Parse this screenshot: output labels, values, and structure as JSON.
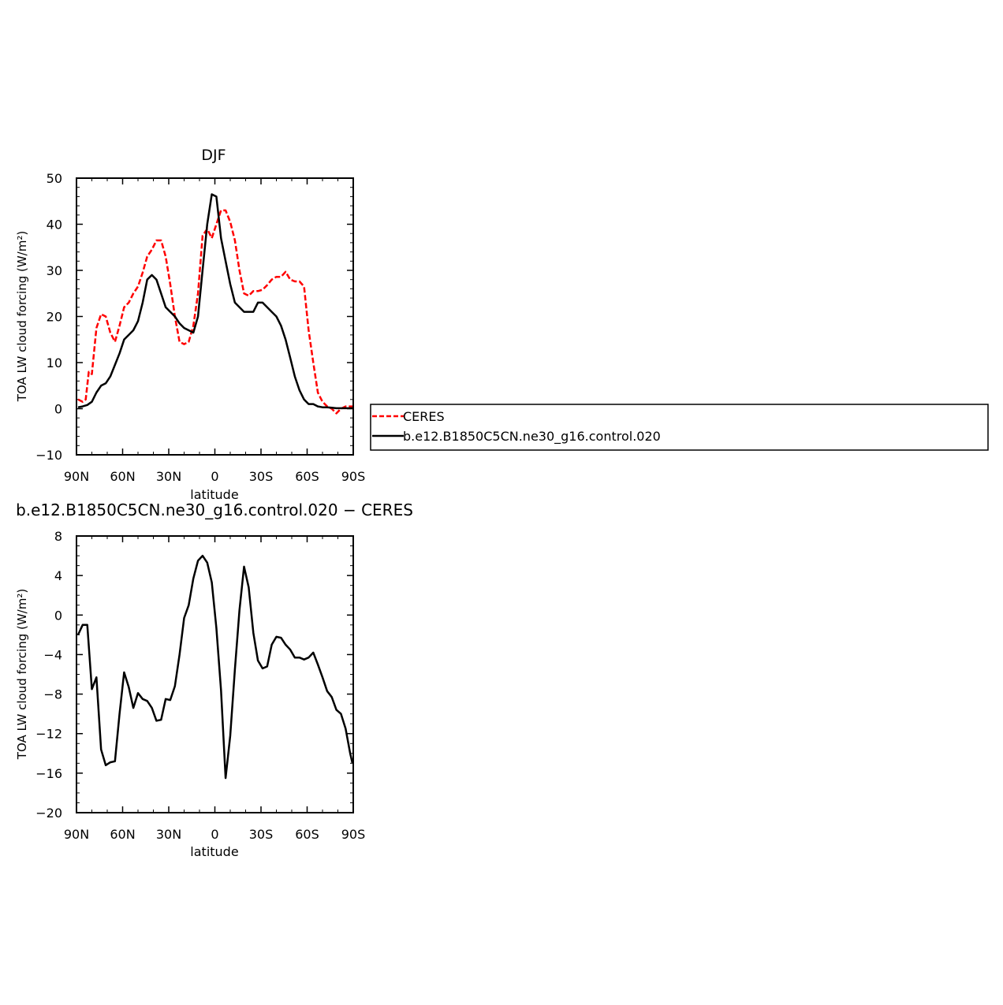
{
  "chart_data": [
    {
      "type": "line",
      "title": "DJF",
      "xlabel": "latitude",
      "ylabel": "TOA LW cloud forcing (W/m²)",
      "xticks": [
        "90N",
        "60N",
        "30N",
        "0",
        "30S",
        "60S",
        "90S"
      ],
      "xlim": [
        90,
        -90
      ],
      "yticks": [
        "−10",
        "0",
        "10",
        "20",
        "30",
        "40",
        "50"
      ],
      "ylim": [
        -10,
        50
      ],
      "legend_position": "right",
      "series": [
        {
          "name": "CERES",
          "color": "#ff0000",
          "dash": "dashed",
          "x": [
            89,
            86,
            84,
            82,
            80,
            77,
            74,
            71,
            68,
            65,
            62,
            59,
            56,
            53,
            50,
            47,
            44,
            41,
            38,
            35,
            32,
            29,
            26,
            23,
            20,
            17,
            14,
            11,
            8,
            5,
            2,
            -1,
            -4,
            -7,
            -10,
            -13,
            -16,
            -19,
            -22,
            -25,
            -28,
            -31,
            -34,
            -37,
            -40,
            -43,
            -46,
            -49,
            -52,
            -55,
            -58,
            -61,
            -64,
            -67,
            -70,
            -73,
            -76,
            -79,
            -82,
            -85,
            -88,
            -89.5
          ],
          "values": [
            2,
            1.5,
            2,
            8,
            7.5,
            17.5,
            20.5,
            20,
            16.5,
            14.5,
            18,
            22,
            23,
            25,
            26.5,
            29.5,
            33,
            34.5,
            36.5,
            36.5,
            33,
            27,
            20,
            14.5,
            14,
            14.5,
            18,
            25,
            37.5,
            39,
            37,
            40,
            43,
            43,
            40.5,
            36.5,
            30,
            25,
            24.5,
            25.5,
            25.5,
            25.8,
            26.8,
            28,
            28.6,
            28.6,
            29.7,
            28,
            27.6,
            27.6,
            26.5,
            17,
            10,
            3.5,
            1.5,
            0.5,
            0,
            -1,
            0,
            0.5,
            0.5,
            0.5
          ]
        },
        {
          "name": "b.e12.B1850C5CN.ne30_g16.control.020",
          "color": "#000000",
          "dash": "solid",
          "x": [
            89,
            86,
            83,
            80,
            77,
            74,
            71,
            68,
            65,
            62,
            59,
            56,
            53,
            50,
            47,
            44,
            41,
            38,
            35,
            32,
            29,
            26,
            23,
            20,
            17,
            14,
            11,
            8,
            5,
            2,
            -1,
            -4,
            -7,
            -10,
            -13,
            -16,
            -19,
            -22,
            -25,
            -28,
            -31,
            -34,
            -37,
            -40,
            -43,
            -46,
            -49,
            -52,
            -55,
            -58,
            -61,
            -64,
            -67,
            -70,
            -73,
            -76,
            -79,
            -82,
            -85,
            -88,
            -89.5
          ],
          "values": [
            0.3,
            0.5,
            0.8,
            1.5,
            3.5,
            5,
            5.5,
            7,
            9.5,
            12,
            15,
            16,
            17,
            19,
            23,
            28,
            29,
            28,
            25,
            22,
            21,
            20,
            18.5,
            17.5,
            17,
            16.5,
            20,
            30,
            40,
            46.5,
            46,
            37,
            32,
            27,
            23,
            22,
            21,
            21,
            21,
            23,
            23,
            22,
            21,
            20,
            18,
            15,
            11,
            7,
            4,
            2,
            1,
            1,
            0.5,
            0.3,
            0.3,
            0.2,
            0.1,
            0.1,
            0.1,
            0.1,
            0.1
          ]
        }
      ]
    },
    {
      "type": "line",
      "title": "b.e12.B1850C5CN.ne30_g16.control.020 − CERES",
      "xlabel": "latitude",
      "ylabel": "TOA LW cloud forcing (W/m²)",
      "xticks": [
        "90N",
        "60N",
        "30N",
        "0",
        "30S",
        "60S",
        "90S"
      ],
      "xlim": [
        90,
        -90
      ],
      "yticks": [
        "−20",
        "−16",
        "−12",
        "−8",
        "−4",
        "0",
        "4",
        "8"
      ],
      "ylim": [
        -20,
        8
      ],
      "series": [
        {
          "name": "",
          "color": "#000000",
          "dash": "solid",
          "x": [
            89,
            86,
            83,
            80,
            77,
            74,
            71,
            68,
            65,
            62,
            59,
            56,
            53,
            50,
            47,
            44,
            41,
            38,
            35,
            32,
            29,
            26,
            23,
            20,
            17,
            14,
            11,
            8,
            5,
            2,
            -1,
            -4,
            -7,
            -10,
            -13,
            -16,
            -19,
            -22,
            -25,
            -28,
            -31,
            -34,
            -37,
            -40,
            -43,
            -46,
            -49,
            -52,
            -55,
            -58,
            -61,
            -64,
            -67,
            -70,
            -73,
            -76,
            -79,
            -82,
            -85,
            -88,
            -89.5
          ],
          "values": [
            -2,
            -1,
            -1,
            -7.5,
            -6.3,
            -13.6,
            -15.2,
            -14.9,
            -14.8,
            -10,
            -5.8,
            -7.3,
            -9.4,
            -7.9,
            -8.5,
            -8.7,
            -9.4,
            -10.7,
            -10.6,
            -8.5,
            -8.6,
            -7.2,
            -4,
            -0.3,
            1,
            3.7,
            5.5,
            6,
            5.3,
            3.3,
            -1.3,
            -7.6,
            -16.5,
            -12.2,
            -5.5,
            0.5,
            4.9,
            2.8,
            -1.8,
            -4.6,
            -5.4,
            -5.2,
            -3,
            -2.2,
            -2.3,
            -3,
            -3.5,
            -4.3,
            -4.3,
            -4.5,
            -4.3,
            -3.8,
            -5,
            -6.3,
            -7.7,
            -8.3,
            -9.6,
            -10,
            -11.5,
            -14,
            -15
          ]
        }
      ]
    }
  ]
}
